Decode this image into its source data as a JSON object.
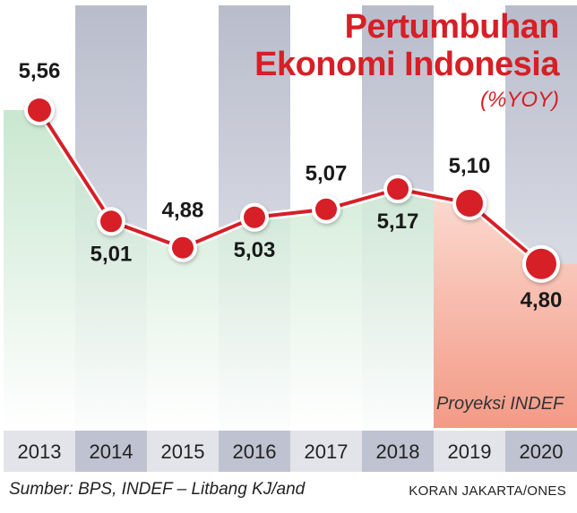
{
  "chart_data": {
    "type": "line",
    "title": "Pertumbuhan Ekonomi Indonesia",
    "title_lines": [
      "Pertumbuhan",
      "Ekonomi Indonesia"
    ],
    "subtitle": "(%YOY)",
    "categories": [
      "2013",
      "2014",
      "2015",
      "2016",
      "2017",
      "2018",
      "2019",
      "2020"
    ],
    "series": [
      {
        "values": [
          5.56,
          5.01,
          4.88,
          5.03,
          5.07,
          5.17,
          5.1,
          4.8
        ],
        "labels": [
          "5,56",
          "5,01",
          "4,88",
          "5,03",
          "5,07",
          "5,17",
          "5,10",
          "4,80"
        ]
      }
    ],
    "projection_from_index": 6,
    "projection_label": "Proyeksi INDEF",
    "ylim": [
      4.6,
      5.75
    ],
    "grid": false,
    "colors": {
      "line": "#d61f26",
      "marker": "#d61f26",
      "title": "#d61f26",
      "column_light": "#ffffff",
      "column_dark": "#c3c6d4",
      "fill_green": "#cfe9d4",
      "fill_projection": "#f4a492",
      "axis_band_light": "#e3e4ea",
      "axis_band_dark": "#bfc2d0"
    }
  },
  "source": "Sumber: BPS, INDEF – Litbang KJ/and",
  "credit": "KORAN JAKARTA/ONES"
}
